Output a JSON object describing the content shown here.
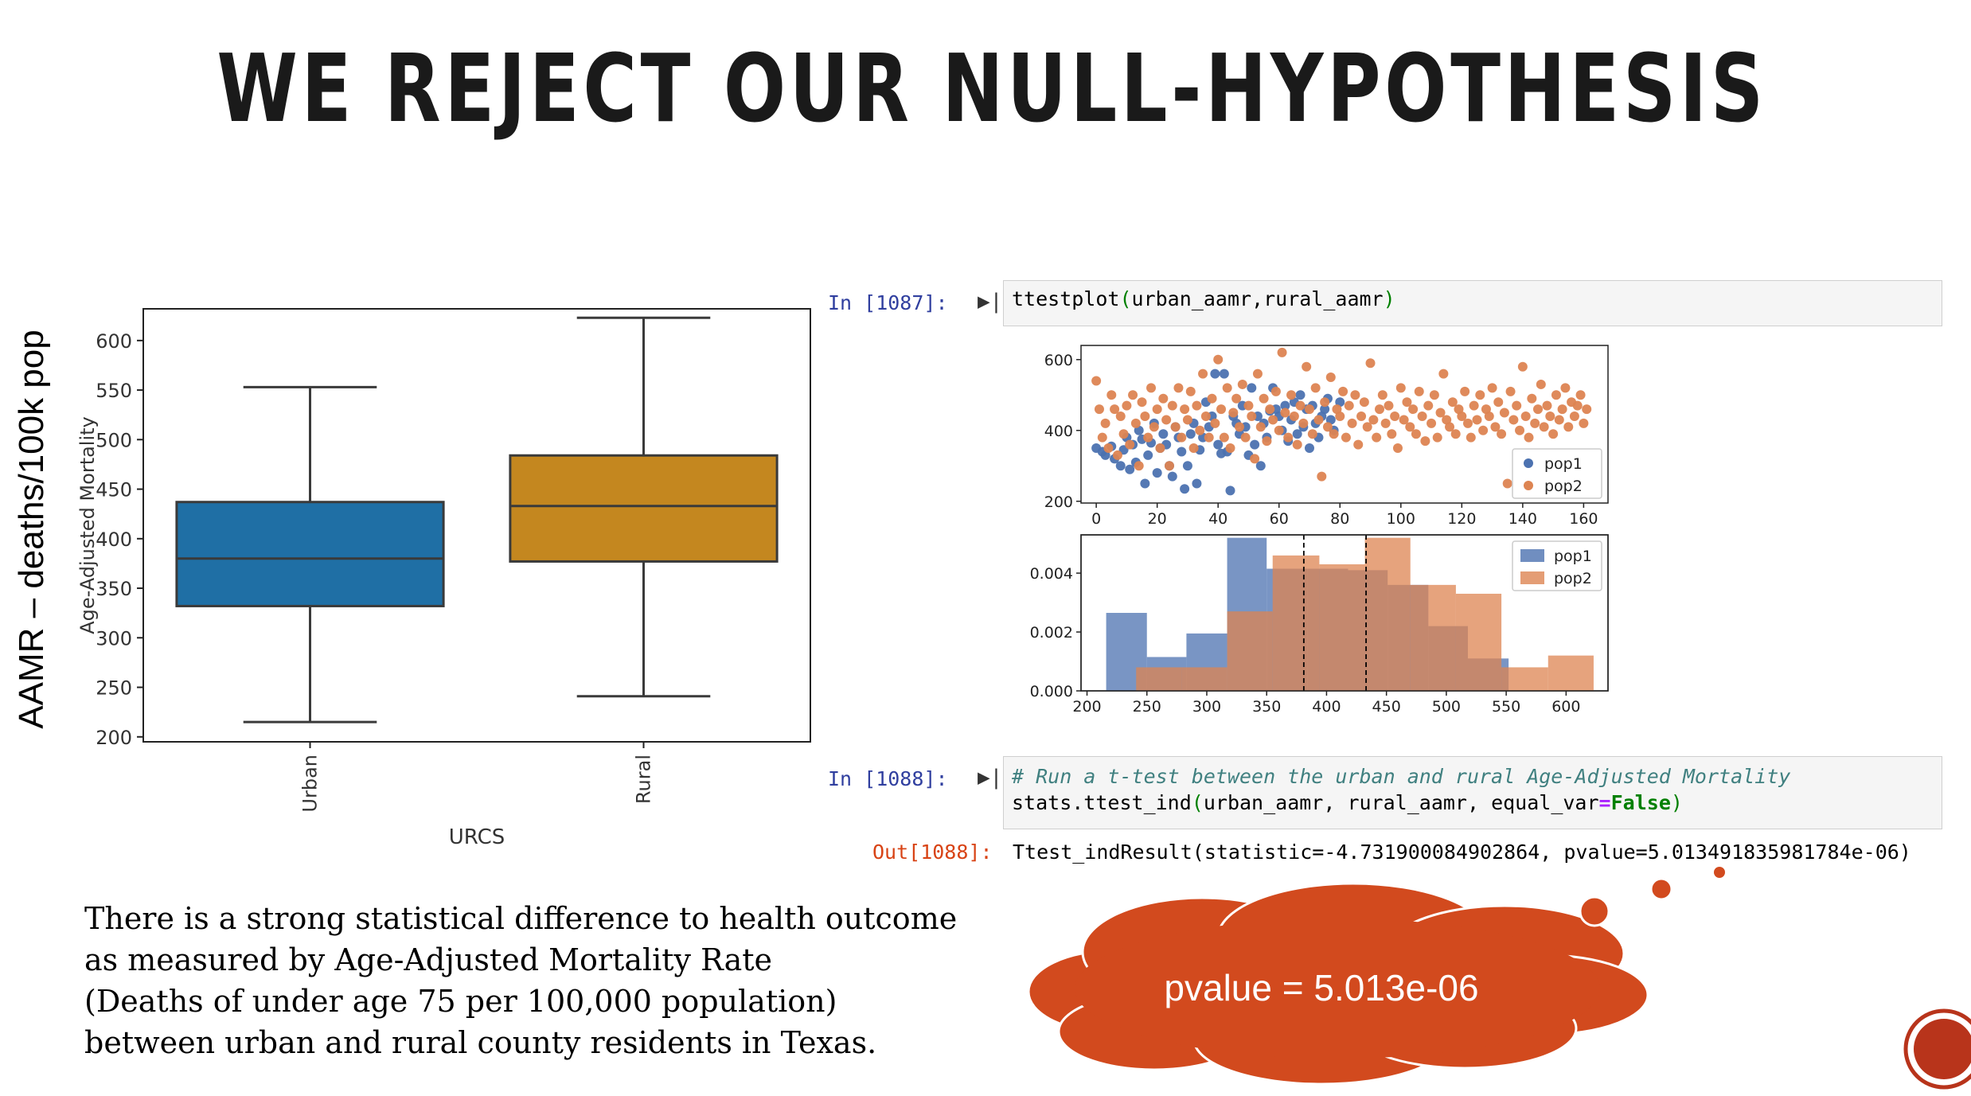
{
  "slide": {
    "title": "WE REJECT OUR NULL-HYPOTHESIS",
    "side_label": "AAMR – deaths/100k pop",
    "caption_lines": [
      "There is a strong statistical difference to health outcome",
      "as measured by Age-Adjusted Mortality Rate",
      "(Deaths of under age 75 per 100,000 population)",
      "between urban and rural county residents in Texas."
    ],
    "cloud_text": "pvalue = 5.013e-06",
    "colors": {
      "urban": "#1f6fa5",
      "rural": "#c4871f",
      "cloud": "#d24a1e",
      "pop1": "#4c72b0",
      "pop2": "#dd8452"
    }
  },
  "notebook": {
    "cell1": {
      "prompt": "In [1087]:",
      "code_fn": "ttestplot",
      "code_open": "(",
      "code_args": "urban_aamr,rural_aamr",
      "code_close": ")"
    },
    "cell2": {
      "prompt": "In [1088]:",
      "comment": "# Run a t-test between the urban and rural Age-Adjusted Mortality",
      "line2_a": "stats.ttest_ind",
      "line2_b": "urban_aamr, rural_aamr, equal_var",
      "line2_eq": "=",
      "line2_kw": "False"
    },
    "output": {
      "prompt": "Out[1088]:",
      "text": "Ttest_indResult(statistic=-4.731900084902864, pvalue=5.013491835981784e-06)"
    }
  },
  "chart_data": [
    {
      "type": "box",
      "xlabel": "URCS",
      "ylabel": "Age-Adjusted Mortality",
      "categories": [
        "Urban",
        "Rural"
      ],
      "ylim": [
        195,
        632
      ],
      "yticks": [
        200,
        250,
        300,
        350,
        400,
        450,
        500,
        550,
        600
      ],
      "boxes": [
        {
          "name": "Urban",
          "min": 215,
          "q1": 332,
          "median": 380,
          "q3": 437,
          "max": 553
        },
        {
          "name": "Rural",
          "min": 241,
          "q1": 377,
          "median": 433,
          "q3": 484,
          "max": 623
        }
      ]
    },
    {
      "type": "scatter",
      "xlim": [
        -5,
        168
      ],
      "ylim": [
        195,
        640
      ],
      "xticks": [
        0,
        20,
        40,
        60,
        80,
        100,
        120,
        140,
        160
      ],
      "yticks": [
        200,
        400,
        600
      ],
      "legend": "lower-right",
      "series": [
        {
          "name": "pop1",
          "x": [
            0,
            2,
            3,
            5,
            6,
            8,
            9,
            10,
            11,
            12,
            13,
            14,
            15,
            16,
            17,
            18,
            19,
            20,
            21,
            22,
            23,
            24,
            25,
            26,
            27,
            28,
            29,
            30,
            31,
            32,
            33,
            34,
            35,
            36,
            37,
            38,
            39,
            40,
            41,
            42,
            43,
            44,
            45,
            46,
            47,
            48,
            49,
            50,
            51,
            52,
            53,
            54,
            55,
            56,
            57,
            58,
            59,
            60,
            61,
            62,
            63,
            64,
            65,
            66,
            67,
            68,
            69,
            70,
            71,
            72,
            73,
            74,
            75,
            76,
            77,
            78,
            80
          ],
          "y": [
            350,
            340,
            330,
            355,
            320,
            300,
            345,
            380,
            290,
            360,
            310,
            400,
            375,
            250,
            330,
            365,
            420,
            280,
            350,
            390,
            360,
            300,
            270,
            410,
            380,
            340,
            235,
            300,
            390,
            420,
            250,
            345,
            380,
            480,
            410,
            440,
            560,
            360,
            335,
            560,
            340,
            230,
            440,
            420,
            390,
            470,
            410,
            330,
            520,
            360,
            440,
            300,
            420,
            380,
            455,
            520,
            460,
            440,
            400,
            470,
            370,
            430,
            480,
            390,
            500,
            410,
            460,
            350,
            470,
            420,
            380,
            440,
            460,
            490,
            430,
            400,
            480
          ]
        },
        {
          "name": "pop2",
          "x": [
            0,
            1,
            2,
            3,
            4,
            5,
            6,
            7,
            8,
            9,
            10,
            11,
            12,
            13,
            14,
            15,
            16,
            17,
            18,
            19,
            20,
            21,
            22,
            23,
            24,
            25,
            26,
            27,
            28,
            29,
            30,
            31,
            32,
            33,
            34,
            35,
            36,
            37,
            38,
            39,
            40,
            41,
            42,
            43,
            44,
            45,
            46,
            47,
            48,
            49,
            50,
            51,
            52,
            53,
            54,
            55,
            56,
            57,
            58,
            59,
            60,
            61,
            62,
            63,
            64,
            65,
            66,
            67,
            68,
            69,
            70,
            71,
            72,
            73,
            74,
            75,
            76,
            77,
            78,
            79,
            80,
            81,
            82,
            83,
            84,
            85,
            86,
            87,
            88,
            89,
            90,
            91,
            92,
            93,
            94,
            95,
            96,
            97,
            98,
            99,
            100,
            101,
            102,
            103,
            104,
            105,
            106,
            107,
            108,
            109,
            110,
            111,
            112,
            113,
            114,
            115,
            116,
            117,
            118,
            119,
            120,
            121,
            122,
            123,
            124,
            125,
            126,
            127,
            128,
            129,
            130,
            131,
            132,
            133,
            134,
            135,
            136,
            137,
            138,
            139,
            140,
            141,
            142,
            143,
            144,
            145,
            146,
            147,
            148,
            149,
            150,
            151,
            152,
            153,
            154,
            155,
            156,
            157,
            158,
            159,
            160,
            161
          ],
          "y": [
            540,
            460,
            380,
            420,
            350,
            500,
            460,
            330,
            440,
            390,
            470,
            360,
            500,
            420,
            300,
            480,
            440,
            380,
            520,
            410,
            460,
            350,
            490,
            430,
            300,
            470,
            410,
            520,
            380,
            460,
            430,
            510,
            350,
            470,
            400,
            560,
            440,
            380,
            490,
            420,
            600,
            460,
            380,
            520,
            350,
            450,
            490,
            410,
            530,
            380,
            470,
            440,
            320,
            560,
            410,
            490,
            370,
            460,
            430,
            510,
            400,
            620,
            450,
            380,
            500,
            440,
            360,
            470,
            420,
            580,
            460,
            390,
            520,
            430,
            270,
            480,
            410,
            550,
            390,
            460,
            440,
            510,
            380,
            470,
            420,
            500,
            360,
            440,
            480,
            410,
            590,
            430,
            380,
            460,
            500,
            420,
            470,
            390,
            440,
            350,
            520,
            430,
            480,
            410,
            460,
            390,
            510,
            440,
            370,
            470,
            420,
            500,
            380,
            450,
            560,
            430,
            410,
            480,
            390,
            460,
            440,
            510,
            420,
            380,
            470,
            430,
            500,
            400,
            460,
            440,
            520,
            410,
            480,
            390,
            450,
            250,
            510,
            430,
            470,
            400,
            580,
            440,
            380,
            490,
            420,
            460,
            530,
            410,
            470,
            440,
            390,
            500,
            430,
            460,
            520,
            410,
            480,
            440,
            470,
            500,
            420,
            460
          ]
        }
      ]
    },
    {
      "type": "histogram",
      "xlim": [
        195,
        635
      ],
      "ylim": [
        0,
        0.0053
      ],
      "xticks": [
        200,
        250,
        300,
        350,
        400,
        450,
        500,
        550,
        600
      ],
      "yticks": [
        0.0,
        0.002,
        0.004
      ],
      "ytick_labels": [
        "0.000",
        "0.002",
        "0.004"
      ],
      "legend": "top-right",
      "vlines": [
        381,
        433
      ],
      "series": [
        {
          "name": "pop1",
          "bins": [
            {
              "x0": 216,
              "x1": 250,
              "h": 0.00265
            },
            {
              "x0": 250,
              "x1": 283,
              "h": 0.00115
            },
            {
              "x0": 283,
              "x1": 317,
              "h": 0.00195
            },
            {
              "x0": 317,
              "x1": 350,
              "h": 0.0052
            },
            {
              "x0": 350,
              "x1": 384,
              "h": 0.00415
            },
            {
              "x0": 384,
              "x1": 418,
              "h": 0.00415
            },
            {
              "x0": 418,
              "x1": 451,
              "h": 0.0041
            },
            {
              "x0": 451,
              "x1": 485,
              "h": 0.0036
            },
            {
              "x0": 485,
              "x1": 518,
              "h": 0.0022
            },
            {
              "x0": 518,
              "x1": 552,
              "h": 0.0011
            }
          ]
        },
        {
          "name": "pop2",
          "bins": [
            {
              "x0": 241,
              "x1": 279,
              "h": 0.0008
            },
            {
              "x0": 279,
              "x1": 317,
              "h": 0.0008
            },
            {
              "x0": 317,
              "x1": 355,
              "h": 0.0027
            },
            {
              "x0": 355,
              "x1": 394,
              "h": 0.0046
            },
            {
              "x0": 394,
              "x1": 432,
              "h": 0.0043
            },
            {
              "x0": 432,
              "x1": 470,
              "h": 0.0052
            },
            {
              "x0": 470,
              "x1": 508,
              "h": 0.0036
            },
            {
              "x0": 508,
              "x1": 546,
              "h": 0.0033
            },
            {
              "x0": 546,
              "x1": 585,
              "h": 0.0008
            },
            {
              "x0": 585,
              "x1": 623,
              "h": 0.0012
            }
          ]
        }
      ]
    }
  ]
}
